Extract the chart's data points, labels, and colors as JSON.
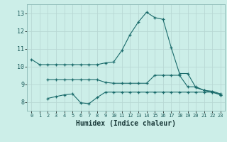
{
  "title": "",
  "xlabel": "Humidex (Indice chaleur)",
  "background_color": "#cceee8",
  "line_color": "#1a6b6b",
  "grid_color": "#b8d8d4",
  "x": [
    0,
    1,
    2,
    3,
    4,
    5,
    6,
    7,
    8,
    9,
    10,
    11,
    12,
    13,
    14,
    15,
    16,
    17,
    18,
    19,
    20,
    21,
    22,
    23
  ],
  "line1": [
    10.4,
    10.1,
    10.1,
    10.1,
    10.1,
    10.1,
    10.1,
    10.1,
    10.1,
    10.2,
    10.25,
    10.9,
    11.8,
    12.5,
    13.05,
    12.75,
    12.65,
    11.05,
    9.6,
    9.6,
    8.8,
    8.65,
    8.55,
    8.4
  ],
  "line2": [
    null,
    null,
    9.25,
    9.25,
    9.25,
    9.25,
    9.25,
    9.25,
    9.25,
    9.1,
    9.05,
    9.05,
    9.05,
    9.05,
    9.05,
    9.5,
    9.5,
    9.5,
    9.5,
    8.85,
    8.85,
    8.65,
    8.6,
    8.45
  ],
  "line3": [
    null,
    null,
    8.2,
    8.3,
    8.4,
    8.45,
    7.95,
    7.9,
    8.25,
    8.55,
    8.55,
    8.55,
    8.55,
    8.55,
    8.55,
    8.55,
    8.55,
    8.55,
    8.55,
    8.55,
    8.55,
    8.55,
    8.55,
    8.4
  ],
  "xlim": [
    -0.5,
    23.5
  ],
  "ylim": [
    7.5,
    13.5
  ],
  "yticks": [
    8,
    9,
    10,
    11,
    12,
    13
  ],
  "xticks": [
    0,
    1,
    2,
    3,
    4,
    5,
    6,
    7,
    8,
    9,
    10,
    11,
    12,
    13,
    14,
    15,
    16,
    17,
    18,
    19,
    20,
    21,
    22,
    23
  ],
  "marker": "+"
}
